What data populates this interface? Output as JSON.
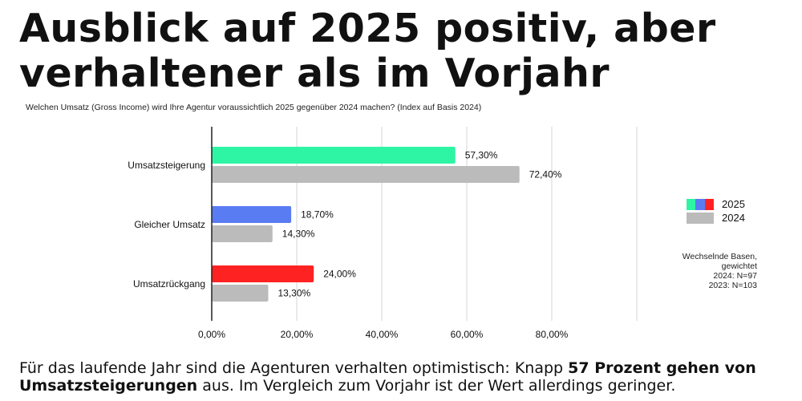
{
  "title": "Ausblick auf 2025 positiv, aber verhaltener als im Vorjahr",
  "question": "Welchen Umsatz (Gross Income) wird Ihre Agentur voraussichtlich 2025 gegenüber 2024 machen? (Index auf Basis 2024)",
  "legend": {
    "label_2025": "2025",
    "label_2024": "2024"
  },
  "note": {
    "line1": "Wechselnde Basen,",
    "line2": "gewichtet",
    "line3": "2024: N=97",
    "line4": "2023: N=103"
  },
  "caption": {
    "part1": "Für das laufende Jahr sind die Agenturen verhalten optimistisch: Knapp ",
    "bold": "57 Prozent gehen von Umsatzsteigerungen",
    "part2": " aus. Im Vergleich zum Vorjahr ist der Wert allerdings geringer."
  },
  "colors": {
    "green": "#2ef5a4",
    "blue": "#5a7cf2",
    "red": "#ff2222",
    "gray": "#bbbbbb"
  },
  "chart_data": {
    "type": "bar",
    "orientation": "horizontal",
    "categories": [
      "Umsatzsteigerung",
      "Gleicher Umsatz",
      "Umsatzrückgang"
    ],
    "series": [
      {
        "name": "2025",
        "values": [
          57.3,
          18.7,
          24.0
        ],
        "labels": [
          "57,30%",
          "18,70%",
          "24,00%"
        ],
        "colors": [
          "#2ef5a4",
          "#5a7cf2",
          "#ff2222"
        ]
      },
      {
        "name": "2024",
        "values": [
          72.4,
          14.3,
          13.3
        ],
        "labels": [
          "72,40%",
          "14,30%",
          "13,30%"
        ],
        "colors": [
          "#bbbbbb",
          "#bbbbbb",
          "#bbbbbb"
        ]
      }
    ],
    "xlim": [
      0,
      100
    ],
    "xticks": [
      0,
      20,
      40,
      60,
      80
    ],
    "xtick_labels": [
      "0,00%",
      "20,00%",
      "40,00%",
      "60,00%",
      "80,00%"
    ],
    "grid": true,
    "legend_position": "right"
  }
}
